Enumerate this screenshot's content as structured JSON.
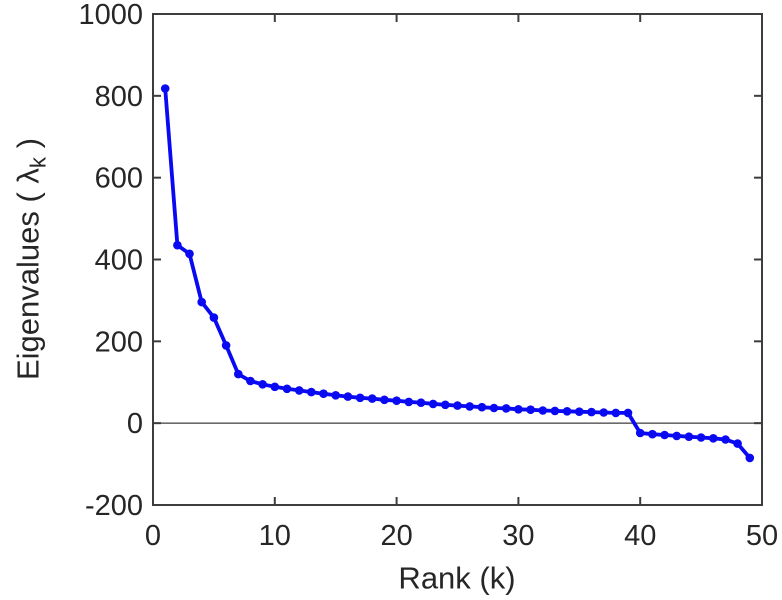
{
  "figure": {
    "background": "#ffffff"
  },
  "chart_data": {
    "type": "line",
    "title": "",
    "xlabel": "Rank (k)",
    "ylabel_prefix": "Eigenvalues ( λ",
    "ylabel_sub": "k",
    "ylabel_suffix": " )",
    "x": [
      1,
      2,
      3,
      4,
      5,
      6,
      7,
      8,
      9,
      10,
      11,
      12,
      13,
      14,
      15,
      16,
      17,
      18,
      19,
      20,
      21,
      22,
      23,
      24,
      25,
      26,
      27,
      28,
      29,
      30,
      31,
      32,
      33,
      34,
      35,
      36,
      37,
      38,
      39,
      40,
      41,
      42,
      43,
      44,
      45,
      46,
      47,
      48,
      49
    ],
    "series": [
      {
        "name": "eigenvalues",
        "values": [
          818,
          435,
          414,
          296,
          258,
          190,
          120,
          103,
          95,
          89,
          84,
          80,
          76,
          72,
          68,
          65,
          62,
          60,
          57,
          55,
          52,
          50,
          47,
          45,
          43,
          41,
          39,
          37,
          36,
          34,
          33,
          31,
          30,
          29,
          28,
          27,
          26,
          25,
          25,
          -24,
          -27,
          -29,
          -31,
          -33,
          -35,
          -37,
          -40,
          -50,
          -85
        ]
      }
    ],
    "xlim": [
      0,
      50
    ],
    "ylim": [
      -200,
      1000
    ],
    "xticks": [
      0,
      10,
      20,
      30,
      40,
      50
    ],
    "yticks": [
      -200,
      0,
      200,
      400,
      600,
      800,
      1000
    ],
    "grid": false,
    "legend_position": "none",
    "zero_line": true,
    "line_color": "#0909f2",
    "marker": "circle",
    "axis_color": "#3d3d3d",
    "zero_line_color": "#6b6b6b",
    "tick_text_color": "#262626"
  }
}
